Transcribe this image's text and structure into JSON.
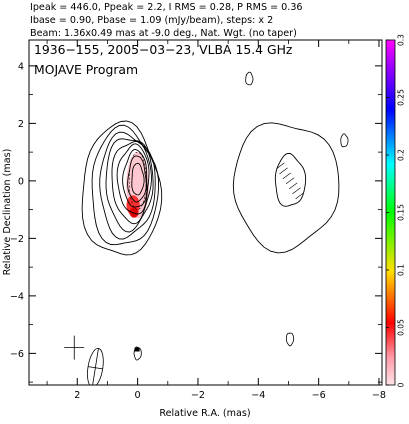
{
  "header_lines": [
    "Ipeak = 446.0, Ppeak = 2.2, I RMS = 0.28, P RMS = 0.36",
    "Ibase = 0.90, Pbase = 1.09 (mJy/beam), steps: x 2",
    "Beam: 1.36x0.49 mas at -9.0 deg., Nat. Wgt. (no taper)"
  ],
  "chart_data": {
    "type": "contour",
    "title": "1936−155, 2005−03−23, VLBA 15.4 GHz",
    "subtitle": "MOJAVE Program",
    "xlabel": "Relative R.A. (mas)",
    "ylabel": "Relative Declination (mas)",
    "xlim": [
      3.6,
      -8.1
    ],
    "ylim": [
      -7.1,
      4.9
    ],
    "xticks": [
      2,
      0,
      -2,
      -4,
      -6,
      -8
    ],
    "xtick_labels": [
      "2",
      "0",
      "−2",
      "−4",
      "−6",
      "−8"
    ],
    "yticks": [
      4,
      2,
      0,
      -2,
      -4,
      -6
    ],
    "ytick_labels": [
      "4",
      "2",
      "0",
      "−2",
      "−4",
      "−6"
    ],
    "colorbar": {
      "min": 0,
      "max": 0.3,
      "ticks": [
        0,
        0.05,
        0.1,
        0.15,
        0.2,
        0.25,
        0.3
      ],
      "tick_labels": [
        "0",
        "0.05",
        "0.1",
        "0.15",
        "0.2",
        "0.25",
        "0.3"
      ],
      "colormap": [
        "#ffd6dc",
        "#ff0000",
        "#ffff00",
        "#00ff00",
        "#00ffff",
        "#0000ff",
        "#ff00ff"
      ]
    },
    "core_component": {
      "center": [
        0.0,
        0.0
      ],
      "contours": [
        {
          "level": 1,
          "rx": 1.3,
          "ry": 2.3,
          "cx": 0.55,
          "cy": -0.35
        },
        {
          "level": 2,
          "rx": 1.1,
          "ry": 2.05,
          "cx": 0.45,
          "cy": -0.25
        },
        {
          "level": 4,
          "rx": 0.92,
          "ry": 1.8,
          "cx": 0.35,
          "cy": -0.15
        },
        {
          "level": 8,
          "rx": 0.78,
          "ry": 1.6,
          "cx": 0.28,
          "cy": -0.05
        },
        {
          "level": 16,
          "rx": 0.65,
          "ry": 1.4,
          "cx": 0.2,
          "cy": 0.0
        },
        {
          "level": 32,
          "rx": 0.52,
          "ry": 1.2,
          "cx": 0.13,
          "cy": 0.05
        },
        {
          "level": 64,
          "rx": 0.4,
          "ry": 1.0,
          "cx": 0.07,
          "cy": 0.05
        },
        {
          "level": 128,
          "rx": 0.3,
          "ry": 0.8,
          "cx": 0.02,
          "cy": 0.05
        },
        {
          "level": 256,
          "rx": 0.2,
          "ry": 0.55,
          "cx": 0.0,
          "cy": 0.05
        }
      ]
    },
    "jet_component": {
      "center": [
        -4.9,
        -0.15
      ],
      "contour": {
        "rx": 1.75,
        "ry": 2.2
      },
      "inner_contour": {
        "rx": 0.5,
        "ry": 0.9,
        "cx": -5.05,
        "cy": 0.0
      }
    },
    "polarization_region": {
      "cx": 0.0,
      "cy": 0.0,
      "rx": 0.28,
      "ry": 1.0
    },
    "small_features": [
      {
        "x": -3.7,
        "y": 3.55
      },
      {
        "x": -6.85,
        "y": 1.4
      },
      {
        "x": 0.0,
        "y": -6.0
      },
      {
        "x": -5.05,
        "y": -5.5
      }
    ],
    "beam": {
      "major": 1.36,
      "minor": 0.49,
      "pa_deg": -9.0,
      "x": 1.4,
      "y": -6.5
    }
  }
}
